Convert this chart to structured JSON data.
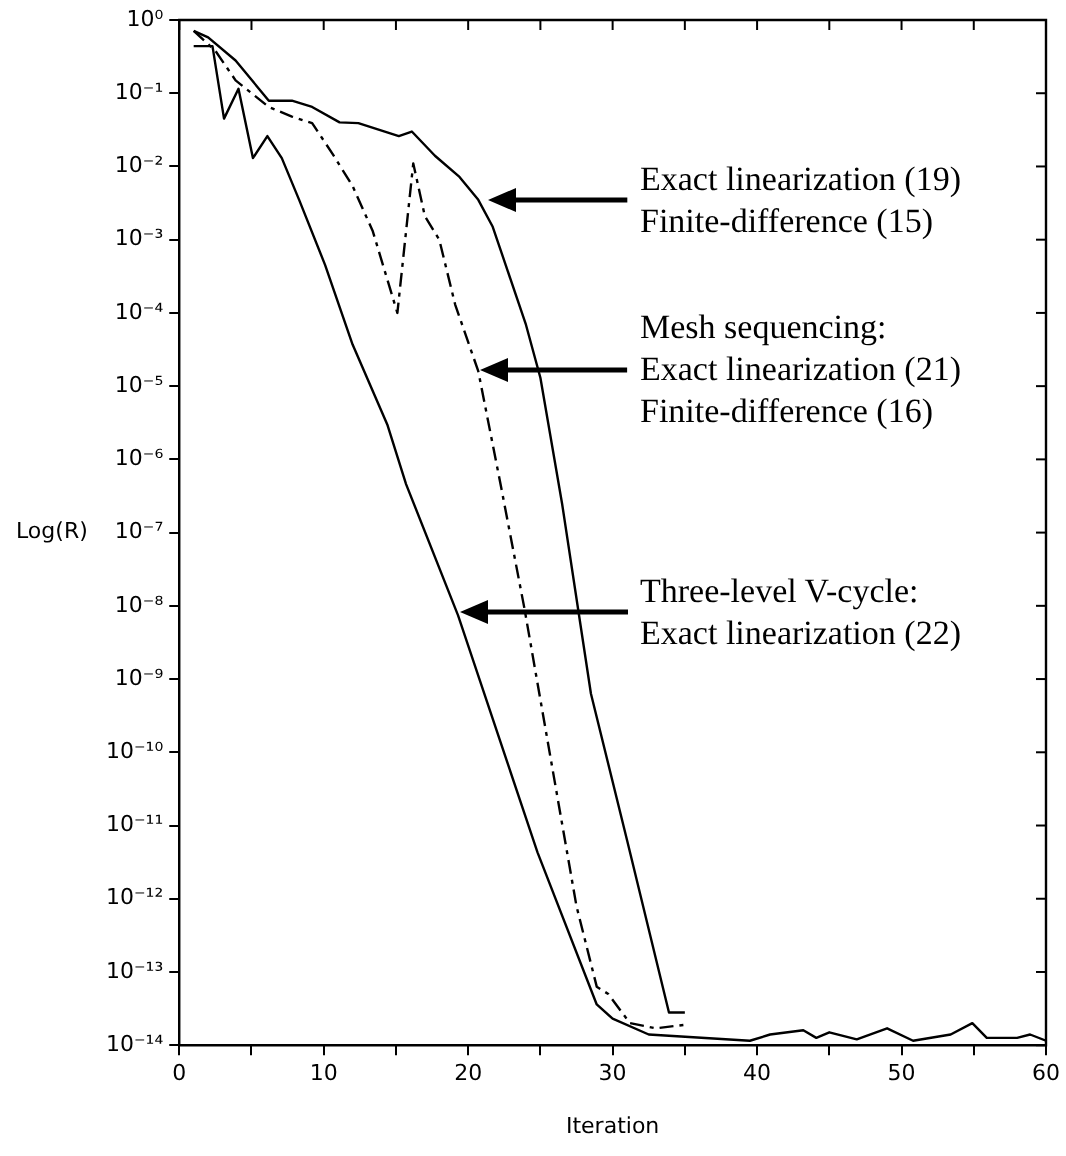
{
  "chart_data": {
    "type": "line",
    "xlabel": "Iteration",
    "ylabel": "Log(R)",
    "log": "y",
    "grid": false,
    "legend": false,
    "marker": "none",
    "xlim": [
      0,
      60
    ],
    "xticks": [
      0,
      {
        "value": 5,
        "label": null
      },
      10,
      {
        "value": 15,
        "label": null
      },
      20,
      {
        "value": 25,
        "label": null
      },
      30,
      {
        "value": 35,
        "label": null
      },
      40,
      {
        "value": 45,
        "label": null
      },
      50,
      {
        "value": 55,
        "label": null
      },
      60
    ],
    "ylim": [
      1e-14,
      1
    ],
    "yticks": [
      {
        "value": 1,
        "label": "10⁰"
      },
      {
        "value": 0.1,
        "label": "10⁻¹"
      },
      {
        "value": 0.01,
        "label": "10⁻²"
      },
      {
        "value": 0.001,
        "label": "10⁻³"
      },
      {
        "value": 0.0001,
        "label": "10⁻⁴"
      },
      {
        "value": 1e-05,
        "label": "10⁻⁵"
      },
      {
        "value": 1e-06,
        "label": "10⁻⁶"
      },
      {
        "value": 1e-07,
        "label": "10⁻⁷"
      },
      {
        "value": 1e-08,
        "label": "10⁻⁸"
      },
      {
        "value": 1e-09,
        "label": "10⁻⁹"
      },
      {
        "value": 1e-10,
        "label": "10⁻¹⁰"
      },
      {
        "value": 1e-11,
        "label": "10⁻¹¹"
      },
      {
        "value": 1e-12,
        "label": "10⁻¹²"
      },
      {
        "value": 1e-13,
        "label": "10⁻¹³"
      },
      {
        "value": 1e-14,
        "label": "10⁻¹⁴"
      }
    ],
    "series": [
      {
        "color": "#000000",
        "line_style": "solid",
        "x": [
          1,
          2,
          3.9,
          6.2,
          7.8,
          9.2,
          11.1,
          12.4,
          15.2,
          16.1,
          17.7,
          19.4,
          20.7,
          21.7,
          22.6,
          24,
          25,
          26.5,
          28.5,
          31,
          33.9,
          35
        ],
        "values": [
          0.71,
          0.58,
          0.28,
          0.079,
          0.079,
          0.065,
          0.04,
          0.039,
          0.026,
          0.03,
          0.014,
          0.0072,
          0.0035,
          0.0015,
          0.00045,
          6.9e-05,
          1.3e-05,
          2.5e-07,
          6.3e-10,
          6.3e-12,
          2.8e-14,
          2.8e-14
        ]
      },
      {
        "color": "#000000",
        "line_style": "dashed",
        "x": [
          1,
          2.5,
          3.9,
          6.2,
          7.8,
          9.2,
          10.6,
          12,
          13.4,
          15.1,
          16.2,
          17,
          18,
          19.1,
          20.7,
          22.3,
          23.9,
          27.5,
          28.9,
          29.7,
          31.2,
          33,
          35
        ],
        "values": [
          0.71,
          0.38,
          0.15,
          0.065,
          0.048,
          0.039,
          0.015,
          0.0054,
          0.0013,
          0.0001,
          0.011,
          0.0021,
          0.001,
          0.00013,
          1.6e-05,
          4e-07,
          9.1e-09,
          7.9e-13,
          6.3e-14,
          5e-14,
          2e-14,
          1.7e-14,
          1.9e-14
        ]
      },
      {
        "color": "#000000",
        "line_style": "solid",
        "x": [
          1,
          2.3,
          3.1,
          4.1,
          5.1,
          6.1,
          7.1,
          8.3,
          10.1,
          12,
          14.4,
          15.7,
          19.3,
          24.8,
          28.9,
          30,
          32.5,
          39.5,
          40.9,
          43.2,
          44.1,
          45,
          46.9,
          49,
          50.8,
          53.4,
          54.9,
          55.9,
          58,
          58.9,
          60
        ],
        "values": [
          0.44,
          0.44,
          0.045,
          0.115,
          0.013,
          0.026,
          0.013,
          0.0035,
          0.00045,
          3.7e-05,
          3e-06,
          4.6e-07,
          7.4e-09,
          4.3e-12,
          3.6e-14,
          2.3e-14,
          1.4e-14,
          1.15e-14,
          1.4e-14,
          1.6e-14,
          1.26e-14,
          1.5e-14,
          1.2e-14,
          1.7e-14,
          1.15e-14,
          1.4e-14,
          2e-14,
          1.26e-14,
          1.26e-14,
          1.4e-14,
          1.15e-14
        ]
      }
    ],
    "annotations": [
      "Exact linearization (19)\nFinite-difference (15)",
      "Mesh sequencing:\nExact linearization (21)\nFinite-difference (16)",
      "Three-level V-cycle:\nExact linearization (22)"
    ]
  }
}
